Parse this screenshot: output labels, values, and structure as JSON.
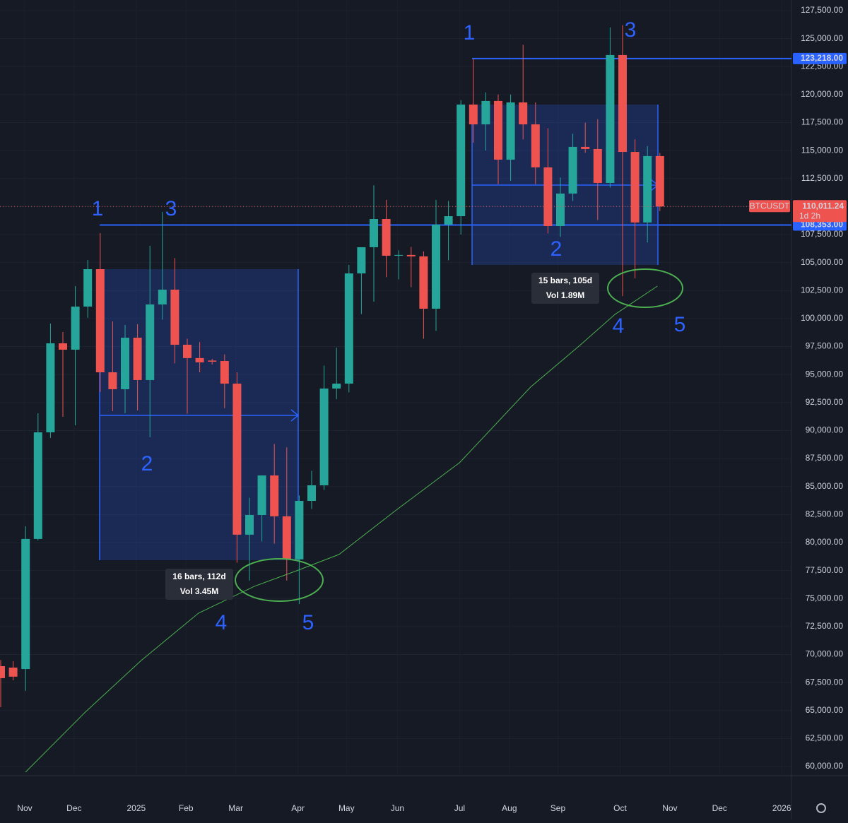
{
  "chart_data": {
    "type": "candlestick",
    "xlim": [
      -0.057,
      63.58
    ],
    "ylim": [
      59180,
      128446
    ],
    "grid": true,
    "up_color": "#26a69a",
    "down_color": "#ef5350",
    "categories": [
      null,
      null,
      null,
      null,
      null,
      null,
      null,
      null,
      null,
      null,
      null,
      null,
      null,
      null,
      null,
      null,
      null,
      null,
      null,
      null,
      null,
      null,
      null,
      null,
      null,
      null,
      null,
      null,
      null,
      null,
      null,
      null,
      null,
      null,
      null,
      null,
      null,
      null,
      null,
      null,
      null,
      null,
      null,
      null,
      null,
      null,
      null,
      null,
      null,
      null,
      null,
      null,
      null,
      null
    ],
    "open": [
      68960,
      68830,
      68700,
      80320,
      89840,
      97790,
      97220,
      101070,
      104410,
      95200,
      93690,
      98290,
      94510,
      101260,
      102580,
      97660,
      96470,
      96250,
      96210,
      94190,
      80700,
      82460,
      85990,
      82340,
      78490,
      83720,
      85110,
      93750,
      94190,
      104030,
      106370,
      108890,
      105610,
      105680,
      105550,
      100880,
      108390,
      109140,
      119110,
      117340,
      119430,
      114190,
      119300,
      117340,
      113500,
      108260,
      111160,
      115330,
      115140,
      112110,
      123530,
      114880,
      108580,
      114510
    ],
    "high": [
      69500,
      69400,
      81450,
      91540,
      99550,
      98800,
      102900,
      105230,
      107630,
      99750,
      99430,
      99500,
      106500,
      109520,
      105400,
      98200,
      97900,
      96400,
      96800,
      95200,
      84000,
      86000,
      88800,
      88500,
      84200,
      86400,
      95800,
      97400,
      104800,
      106000,
      111900,
      110600,
      106100,
      106400,
      106000,
      110600,
      110500,
      119500,
      123200,
      120200,
      120000,
      120000,
      124450,
      119300,
      117000,
      112600,
      116500,
      117500,
      117800,
      126000,
      126200,
      116000,
      115400,
      114800
    ],
    "low": [
      65300,
      67700,
      66760,
      80190,
      89340,
      91230,
      90470,
      100060,
      93440,
      91730,
      91540,
      91800,
      89400,
      99900,
      96000,
      91500,
      95200,
      95900,
      92000,
      78200,
      76600,
      80100,
      79900,
      76600,
      74500,
      83000,
      84700,
      92800,
      93400,
      100400,
      101500,
      103700,
      103500,
      102800,
      98200,
      98900,
      105200,
      107500,
      115700,
      115000,
      112000,
      112300,
      116000,
      112000,
      107600,
      107300,
      110500,
      114800,
      108800,
      111700,
      102000,
      103600,
      106800,
      109600
    ],
    "close": [
      67890,
      68020,
      80320,
      89840,
      97790,
      97220,
      101070,
      104410,
      95200,
      93690,
      98290,
      94510,
      101260,
      102580,
      97660,
      96470,
      96090,
      96150,
      94190,
      80700,
      82460,
      85990,
      82340,
      78490,
      83720,
      85110,
      93750,
      94190,
      104030,
      106370,
      108890,
      105610,
      105680,
      105550,
      100880,
      108390,
      109140,
      119110,
      117340,
      119430,
      114190,
      119300,
      117340,
      113500,
      108260,
      111160,
      115330,
      115140,
      112110,
      123530,
      114880,
      108580,
      114510,
      110011.24
    ],
    "moving_average": {
      "color": "#4caf50",
      "x": [
        2,
        6.8,
        11.3,
        15.9,
        20.4,
        23.8,
        27.2,
        31.8,
        36.9,
        42.6,
        46.5,
        49.4,
        52.8
      ],
      "values": [
        59500,
        64860,
        69470,
        73690,
        76090,
        77480,
        78930,
        82900,
        87130,
        93880,
        97540,
        100380,
        102900
      ]
    },
    "xticks": [
      {
        "value": 1.93,
        "label": "Nov"
      },
      {
        "value": 5.9,
        "label": "Dec"
      },
      {
        "value": 10.9,
        "label": "2025"
      },
      {
        "value": 14.9,
        "label": "Feb"
      },
      {
        "value": 18.9,
        "label": "Mar"
      },
      {
        "value": 23.9,
        "label": "Apr"
      },
      {
        "value": 27.8,
        "label": "May"
      },
      {
        "value": 31.9,
        "label": "Jun"
      },
      {
        "value": 36.9,
        "label": "Jul"
      },
      {
        "value": 40.9,
        "label": "Aug"
      },
      {
        "value": 44.8,
        "label": "Sep"
      },
      {
        "value": 49.8,
        "label": "Oct"
      },
      {
        "value": 53.8,
        "label": "Nov"
      },
      {
        "value": 57.8,
        "label": "Dec"
      },
      {
        "value": 62.8,
        "label": "2026"
      }
    ],
    "yticks": [
      {
        "value": 60000,
        "label": "60,000.00"
      },
      {
        "value": 62500,
        "label": "62,500.00"
      },
      {
        "value": 65000,
        "label": "65,000.00"
      },
      {
        "value": 67500,
        "label": "67,500.00"
      },
      {
        "value": 70000,
        "label": "70,000.00"
      },
      {
        "value": 72500,
        "label": "72,500.00"
      },
      {
        "value": 75000,
        "label": "75,000.00"
      },
      {
        "value": 77500,
        "label": "77,500.00"
      },
      {
        "value": 80000,
        "label": "80,000.00"
      },
      {
        "value": 82500,
        "label": "82,500.00"
      },
      {
        "value": 85000,
        "label": "85,000.00"
      },
      {
        "value": 87500,
        "label": "87,500.00"
      },
      {
        "value": 90000,
        "label": "90,000.00"
      },
      {
        "value": 92500,
        "label": "92,500.00"
      },
      {
        "value": 95000,
        "label": "95,000.00"
      },
      {
        "value": 97500,
        "label": "97,500.00"
      },
      {
        "value": 100000,
        "label": "100,000.00"
      },
      {
        "value": 102500,
        "label": "102,500.00"
      },
      {
        "value": 105000,
        "label": "105,000.00"
      },
      {
        "value": 107500,
        "label": "107,500.00"
      },
      {
        "value": 110000,
        "label": "110,000.00"
      },
      {
        "value": 112500,
        "label": "112,500.00"
      },
      {
        "value": 115000,
        "label": "115,000.00"
      },
      {
        "value": 117500,
        "label": "117,500.00"
      },
      {
        "value": 120000,
        "label": "120,000.00"
      },
      {
        "value": 122500,
        "label": "122,500.00"
      },
      {
        "value": 125000,
        "label": "125,000.00"
      },
      {
        "value": 127500,
        "label": "127,500.00"
      }
    ],
    "price_lines": [
      {
        "value": 123218,
        "label": "123,218.00"
      },
      {
        "value": 108353,
        "label": "108,353.00"
      }
    ],
    "last_price": {
      "value": 110011.24,
      "label": "110,011.24",
      "countdown": "1d 2h",
      "symbol": "BTCUSDT"
    },
    "wave_labels": [
      "1",
      "3",
      "2",
      "4",
      "5",
      "1",
      "3",
      "2",
      "4",
      "5"
    ],
    "range_boxes": [
      {
        "bars": "16 bars, 112d",
        "volume": "Vol 3.45M"
      },
      {
        "bars": "15 bars, 105d",
        "volume": "Vol 1.89M"
      }
    ]
  }
}
